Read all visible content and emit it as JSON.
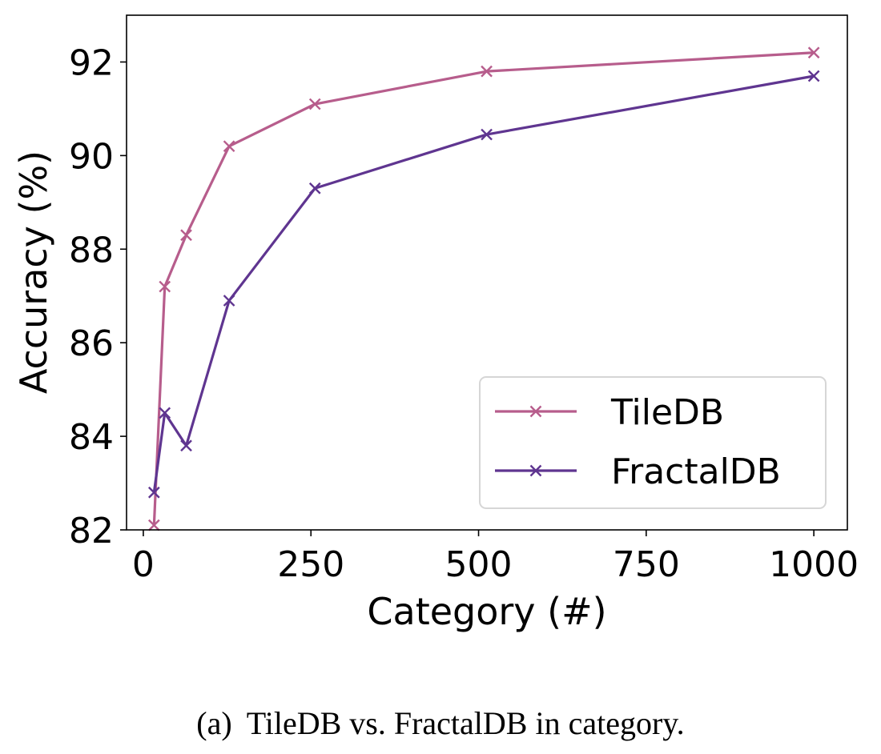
{
  "chart_data": {
    "type": "line",
    "title": "",
    "xlabel": "Category (#)",
    "ylabel": "Accuracy (%)",
    "xlim": [
      -25,
      1050
    ],
    "ylim": [
      82,
      93
    ],
    "xticks": [
      0,
      250,
      500,
      750,
      1000
    ],
    "yticks": [
      82,
      84,
      86,
      88,
      90,
      92
    ],
    "xtick_labels": [
      "0",
      "250",
      "500",
      "750",
      "1000"
    ],
    "ytick_labels": [
      "82",
      "84",
      "86",
      "88",
      "90",
      "92"
    ],
    "grid": false,
    "legend_position": "lower-right",
    "series": [
      {
        "name": "TileDB",
        "color": "#b75d8c",
        "marker": "x",
        "x": [
          16,
          32,
          64,
          128,
          256,
          512,
          1000
        ],
        "y": [
          82.1,
          87.2,
          88.3,
          90.2,
          91.1,
          91.8,
          92.2
        ]
      },
      {
        "name": "FractalDB",
        "color": "#5f3590",
        "marker": "x",
        "x": [
          16,
          32,
          64,
          128,
          256,
          512,
          1000
        ],
        "y": [
          82.8,
          84.5,
          83.8,
          86.9,
          89.3,
          90.45,
          91.7
        ]
      }
    ]
  },
  "caption": {
    "label": "(a)",
    "text": "TileDB vs. FractalDB in category."
  }
}
